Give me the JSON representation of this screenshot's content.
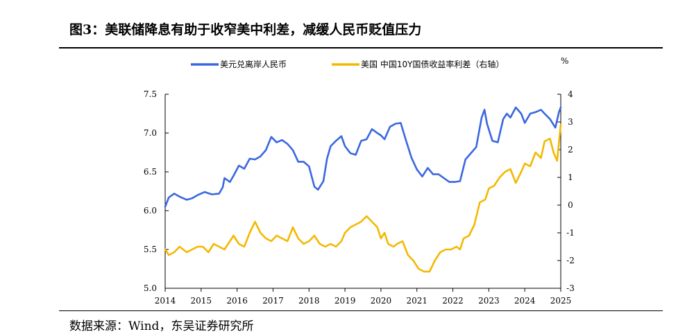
{
  "figure": {
    "title": "图3：美联储降息有助于收窄美中利差，减缓人民币贬值压力",
    "source": "数据来源：Wind，东吴证券研究所"
  },
  "chart_data": {
    "type": "line",
    "title": "图3：美联储降息有助于收窄美中利差，减缓人民币贬值压力",
    "legend_position": "top",
    "grid": false,
    "x_ticks": [
      "2014",
      "2015",
      "2016",
      "2017",
      "2018",
      "2019",
      "2020",
      "2021",
      "2022",
      "2023",
      "2024",
      "2025"
    ],
    "x_range": [
      2014.0,
      2025.0
    ],
    "y_left": {
      "range": [
        5.0,
        7.5
      ],
      "ticks": [
        "5.0",
        "5.5",
        "6.0",
        "6.5",
        "7.0",
        "7.5"
      ]
    },
    "y_right": {
      "range": [
        -3,
        4
      ],
      "ticks": [
        "-3",
        "-2",
        "-1",
        "0",
        "1",
        "2",
        "3",
        "4"
      ],
      "unit": "%"
    },
    "series": [
      {
        "name": "美元兑离岸人民币",
        "axis": "left",
        "color": "#3a66e0",
        "x": [
          2014.0,
          2014.1,
          2014.25,
          2014.4,
          2014.6,
          2014.75,
          2014.9,
          2015.1,
          2015.3,
          2015.5,
          2015.6,
          2015.65,
          2015.8,
          2015.9,
          2016.05,
          2016.2,
          2016.35,
          2016.5,
          2016.65,
          2016.8,
          2016.95,
          2017.1,
          2017.25,
          2017.4,
          2017.55,
          2017.7,
          2017.85,
          2018.0,
          2018.15,
          2018.25,
          2018.4,
          2018.5,
          2018.6,
          2018.75,
          2018.9,
          2019.0,
          2019.15,
          2019.3,
          2019.45,
          2019.6,
          2019.75,
          2019.9,
          2020.0,
          2020.1,
          2020.25,
          2020.4,
          2020.55,
          2020.7,
          2020.85,
          2021.0,
          2021.15,
          2021.3,
          2021.45,
          2021.6,
          2021.75,
          2021.9,
          2022.05,
          2022.2,
          2022.35,
          2022.5,
          2022.65,
          2022.8,
          2022.88,
          2022.95,
          2023.1,
          2023.25,
          2023.4,
          2023.5,
          2023.6,
          2023.75,
          2023.9,
          2024.0,
          2024.15,
          2024.3,
          2024.45,
          2024.55,
          2024.7,
          2024.85,
          2024.95,
          2025.0
        ],
        "y": [
          6.05,
          6.17,
          6.22,
          6.18,
          6.14,
          6.16,
          6.2,
          6.24,
          6.21,
          6.22,
          6.3,
          6.42,
          6.37,
          6.45,
          6.58,
          6.54,
          6.67,
          6.66,
          6.7,
          6.78,
          6.95,
          6.88,
          6.91,
          6.86,
          6.78,
          6.63,
          6.63,
          6.57,
          6.31,
          6.27,
          6.38,
          6.67,
          6.83,
          6.9,
          6.96,
          6.83,
          6.74,
          6.72,
          6.9,
          6.92,
          7.05,
          7.0,
          6.97,
          6.92,
          7.08,
          7.12,
          7.13,
          6.9,
          6.68,
          6.53,
          6.44,
          6.55,
          6.47,
          6.47,
          6.42,
          6.37,
          6.37,
          6.38,
          6.66,
          6.74,
          6.82,
          7.2,
          7.3,
          7.12,
          6.9,
          6.88,
          7.18,
          7.25,
          7.2,
          7.33,
          7.25,
          7.13,
          7.25,
          7.27,
          7.3,
          7.25,
          7.18,
          7.07,
          7.27,
          7.33
        ]
      },
      {
        "name": "美国 中国10Y国债收益率利差（右轴）",
        "axis": "right",
        "color": "#f4b800",
        "x": [
          2014.0,
          2014.1,
          2014.25,
          2014.4,
          2014.6,
          2014.75,
          2014.9,
          2015.05,
          2015.2,
          2015.35,
          2015.5,
          2015.65,
          2015.8,
          2015.9,
          2016.05,
          2016.2,
          2016.35,
          2016.5,
          2016.65,
          2016.8,
          2016.95,
          2017.1,
          2017.25,
          2017.4,
          2017.55,
          2017.7,
          2017.85,
          2018.0,
          2018.15,
          2018.3,
          2018.45,
          2018.6,
          2018.75,
          2018.9,
          2019.0,
          2019.15,
          2019.3,
          2019.45,
          2019.6,
          2019.75,
          2019.9,
          2020.0,
          2020.1,
          2020.2,
          2020.35,
          2020.45,
          2020.6,
          2020.75,
          2020.9,
          2021.05,
          2021.2,
          2021.35,
          2021.5,
          2021.65,
          2021.8,
          2021.95,
          2022.1,
          2022.2,
          2022.3,
          2022.45,
          2022.6,
          2022.75,
          2022.9,
          2023.0,
          2023.15,
          2023.3,
          2023.45,
          2023.6,
          2023.75,
          2023.9,
          2024.0,
          2024.15,
          2024.3,
          2024.45,
          2024.55,
          2024.7,
          2024.8,
          2024.9,
          2025.0
        ],
        "y": [
          -1.6,
          -1.8,
          -1.7,
          -1.5,
          -1.7,
          -1.6,
          -1.5,
          -1.5,
          -1.7,
          -1.4,
          -1.5,
          -1.6,
          -1.3,
          -1.1,
          -1.4,
          -1.5,
          -1.0,
          -0.6,
          -1.0,
          -1.2,
          -1.3,
          -1.1,
          -1.2,
          -1.3,
          -0.8,
          -1.2,
          -1.4,
          -1.3,
          -1.1,
          -1.4,
          -1.5,
          -1.4,
          -1.5,
          -1.3,
          -1.0,
          -0.8,
          -0.7,
          -0.6,
          -0.4,
          -0.6,
          -0.8,
          -1.2,
          -1.0,
          -1.4,
          -1.5,
          -1.4,
          -1.3,
          -1.8,
          -2.0,
          -2.3,
          -2.4,
          -2.4,
          -2.0,
          -1.7,
          -1.6,
          -1.6,
          -1.5,
          -1.6,
          -1.2,
          -1.1,
          -0.7,
          0.1,
          0.2,
          0.6,
          0.7,
          1.0,
          1.2,
          1.3,
          0.8,
          1.2,
          1.5,
          1.4,
          1.9,
          1.7,
          2.3,
          2.4,
          1.9,
          1.6,
          2.9
        ]
      }
    ]
  }
}
